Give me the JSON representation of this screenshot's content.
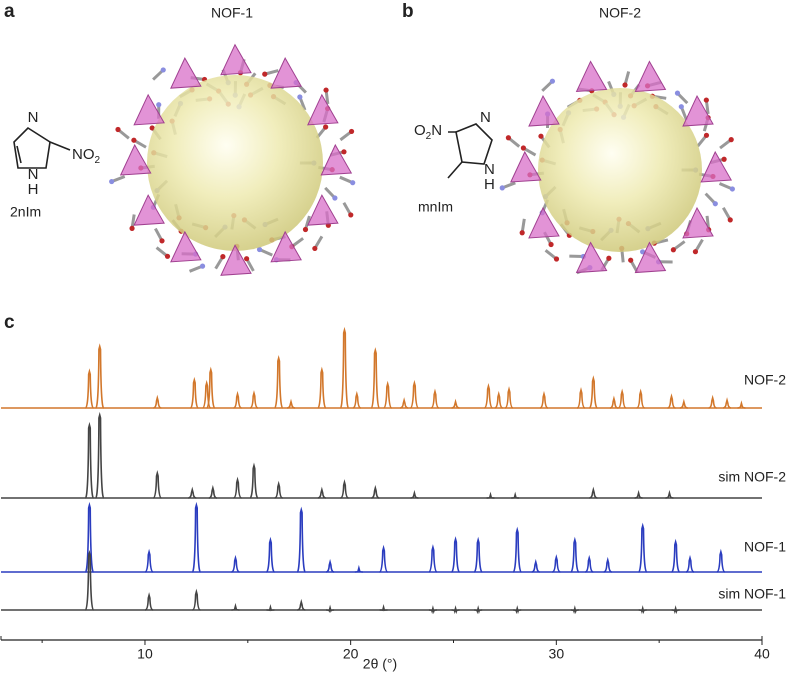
{
  "panels": {
    "a": {
      "letter": "a",
      "title": "NOF-1",
      "ligand": "2nIm",
      "ring_n_top": "N",
      "ring_n_bottom": "N",
      "ring_h": "H",
      "group": "NO",
      "group_sub": "2"
    },
    "b": {
      "letter": "b",
      "title": "NOF-2",
      "ligand": "mnIm",
      "ring_n_top": "N",
      "ring_n_bottom": "N",
      "ring_h": "H",
      "group": "O",
      "group_sub": "2",
      "group_end": "N"
    }
  },
  "chart_data": {
    "type": "pxrd",
    "panel": "c",
    "x_label": "2θ (°)",
    "xlim": [
      3,
      40
    ],
    "xticks": [
      10,
      20,
      30,
      40
    ],
    "xminorticks": [
      5,
      15,
      25,
      35
    ],
    "series": [
      {
        "name": "NOF-2",
        "color": "#d2772b",
        "x": [
          7.3,
          7.8,
          10.6,
          12.4,
          13.0,
          13.2,
          14.5,
          15.3,
          16.5,
          17.1,
          18.6,
          19.7,
          20.3,
          21.2,
          21.8,
          22.6,
          23.1,
          24.1,
          25.1,
          26.7,
          27.2,
          27.7,
          29.4,
          31.2,
          31.8,
          32.8,
          33.2,
          34.1,
          35.6,
          36.2,
          37.6,
          38.3,
          39.0
        ],
        "values": [
          47,
          79,
          13,
          36,
          32,
          49,
          18,
          19,
          64,
          8,
          49,
          100,
          18,
          74,
          31,
          10,
          32,
          21,
          8,
          28,
          18,
          24,
          18,
          23,
          38,
          12,
          21,
          21,
          15,
          8,
          13,
          10,
          6
        ]
      },
      {
        "name": "sim NOF-2",
        "color": "#444444",
        "x": [
          7.3,
          7.8,
          10.6,
          12.3,
          13.3,
          14.5,
          15.3,
          16.5,
          18.6,
          19.7,
          21.2,
          23.1,
          26.8,
          28.0,
          31.8,
          34.0,
          35.5
        ],
        "values": [
          88,
          100,
          30,
          10,
          12,
          22,
          39,
          17,
          10,
          19,
          12,
          6,
          4,
          4,
          10,
          6,
          6
        ]
      },
      {
        "name": "NOF-1",
        "color": "#2a3cbf",
        "x": [
          7.3,
          10.2,
          12.5,
          14.4,
          16.1,
          17.6,
          19.0,
          20.4,
          21.6,
          24.0,
          25.1,
          26.2,
          28.1,
          29.0,
          30.0,
          30.9,
          31.6,
          32.5,
          34.2,
          35.8,
          36.5,
          38.0
        ],
        "values": [
          100,
          30,
          100,
          21,
          48,
          93,
          15,
          6,
          36,
          37,
          49,
          48,
          63,
          15,
          22,
          48,
          21,
          18,
          69,
          45,
          21,
          30
        ]
      },
      {
        "name": "sim NOF-1",
        "color": "#444444",
        "x": [
          7.3,
          10.2,
          12.5,
          14.4,
          16.1,
          17.6,
          19.0,
          21.6,
          24.0,
          25.1,
          26.2,
          28.1,
          30.9,
          34.2,
          35.8
        ],
        "values": [
          100,
          26,
          32,
          7,
          5,
          14,
          4,
          5,
          3,
          3,
          3,
          3,
          3,
          3,
          3
        ]
      }
    ]
  }
}
